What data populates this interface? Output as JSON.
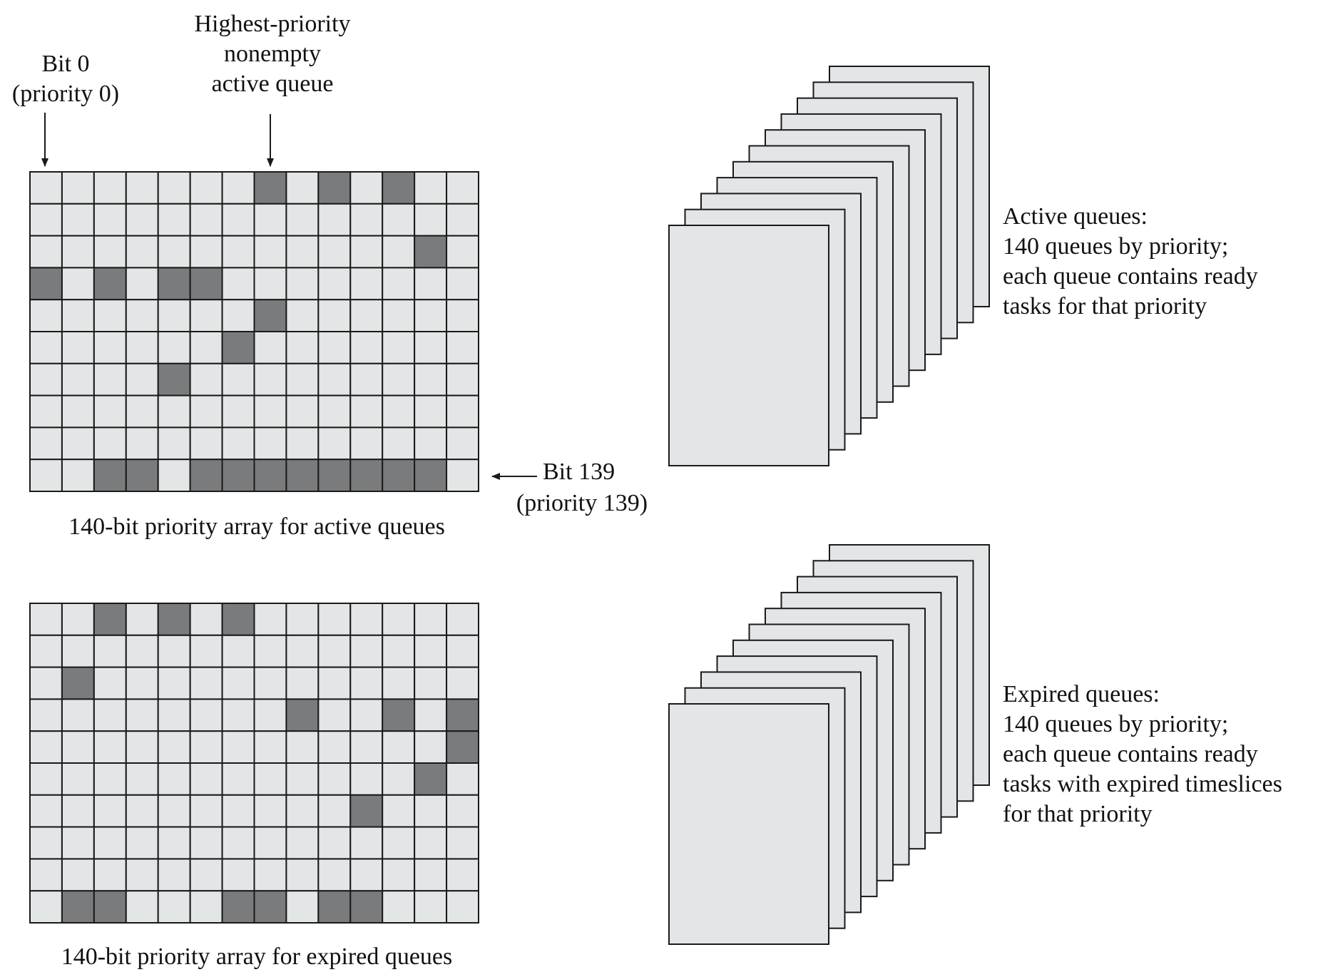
{
  "colors": {
    "cell_empty": "#e3e6e6",
    "cell_filled": "#7a7b7c",
    "queue_fill": "#e3e6e6",
    "stroke": "#1a1a1a"
  },
  "active_array": {
    "caption": "140-bit priority array for active queues",
    "bits_per_row": 14,
    "rows": 10,
    "filled_bits": [
      7,
      9,
      11,
      40,
      42,
      44,
      46,
      47,
      63,
      76,
      88,
      128,
      129,
      131,
      132,
      133,
      134,
      135,
      136,
      137,
      138
    ]
  },
  "expired_array": {
    "caption": "140-bit priority array for expired queues",
    "bits_per_row": 14,
    "rows": 10,
    "filled_bits": [
      2,
      4,
      6,
      29,
      50,
      53,
      55,
      69,
      82,
      94,
      127,
      128,
      132,
      133,
      135,
      136
    ]
  },
  "labels": {
    "bit0": [
      "Bit 0",
      "(priority 0)"
    ],
    "highest": [
      "Highest-priority",
      "nonempty",
      "active queue"
    ],
    "bit139": [
      "Bit 139",
      "(priority 139)"
    ]
  },
  "active_queues": {
    "stack_count": 11,
    "text": [
      "Active queues:",
      "140 queues by priority;",
      "each queue contains ready",
      "tasks for that priority"
    ]
  },
  "expired_queues": {
    "stack_count": 11,
    "text": [
      "Expired queues:",
      "140 queues by priority;",
      "each queue contains ready",
      "tasks with expired timeslices",
      "for that priority"
    ]
  }
}
